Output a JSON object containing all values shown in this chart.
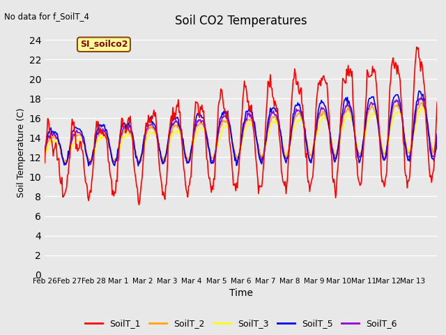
{
  "title": "Soil CO2 Temperatures",
  "xlabel": "Time",
  "ylabel": "Soil Temperature (C)",
  "note": "No data for f_SoilT_4",
  "annotation": "SI_soilco2",
  "ylim": [
    0,
    25
  ],
  "yticks": [
    0,
    2,
    4,
    6,
    8,
    10,
    12,
    14,
    16,
    18,
    20,
    22,
    24
  ],
  "plot_bg": "#e8e8e8",
  "fig_bg": "#e8e8e8",
  "series_colors": {
    "SoilT_1": "#ff0000",
    "SoilT_2": "#ffa500",
    "SoilT_3": "#ffff00",
    "SoilT_5": "#0000ee",
    "SoilT_6": "#9400d3"
  },
  "xtick_labels": [
    "Feb 26",
    "Feb 27",
    "Feb 28",
    "Mar 1",
    "Mar 2",
    "Mar 3",
    "Mar 4",
    "Mar 5",
    "Mar 6",
    "Mar 7",
    "Mar 8",
    "Mar 9",
    "Mar 10",
    "Mar 11",
    "Mar 12",
    "Mar 13"
  ]
}
